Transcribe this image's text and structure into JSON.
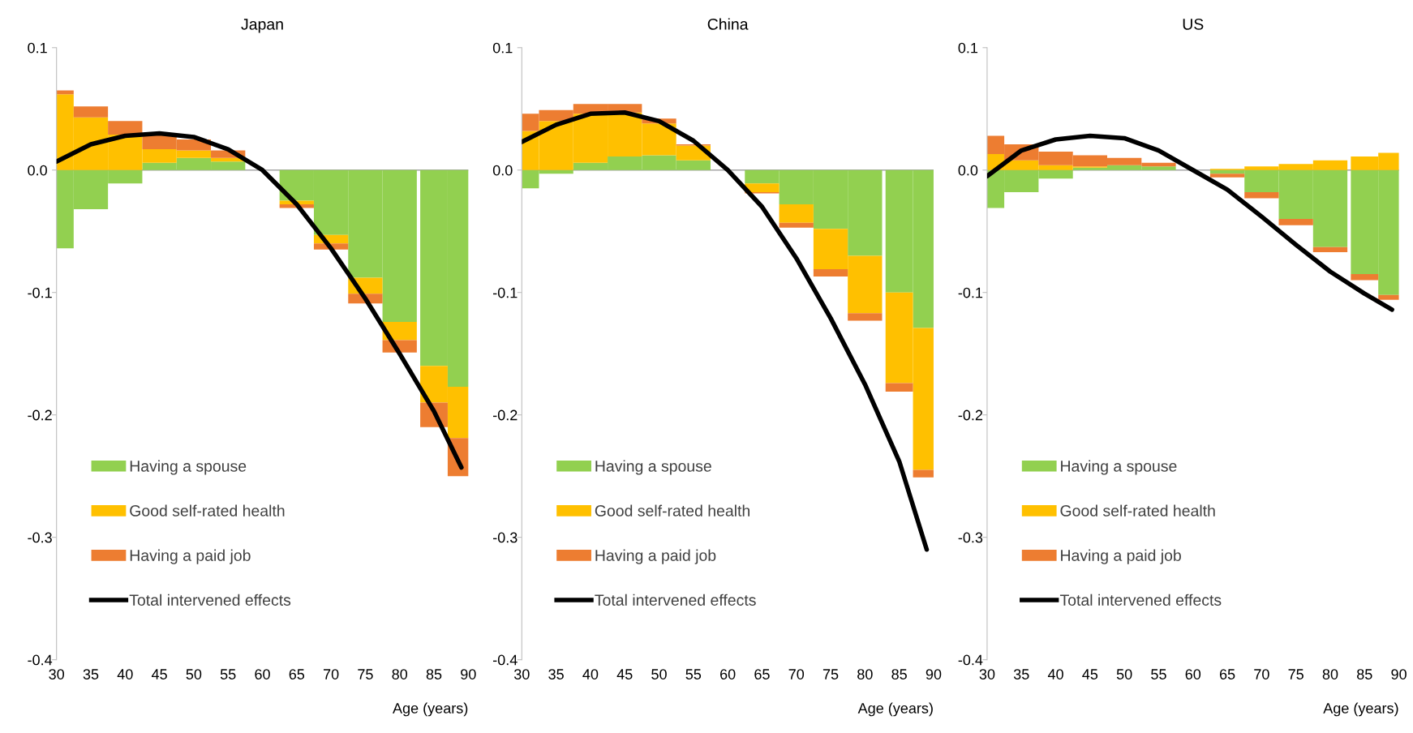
{
  "chart_data": [
    {
      "type": "bar",
      "title": "Japan",
      "xlabel": "Age (years)",
      "stacked": true,
      "x": [
        30,
        35,
        40,
        45,
        50,
        55,
        60,
        65,
        70,
        75,
        80,
        85,
        89
      ],
      "series": [
        {
          "name": "Having a spouse",
          "color": "#92d050",
          "values": [
            -0.064,
            -0.032,
            -0.011,
            0.006,
            0.01,
            0.007,
            0,
            -0.025,
            -0.053,
            -0.088,
            -0.124,
            -0.16,
            -0.177
          ]
        },
        {
          "name": "Good self-rated health",
          "color": "#ffc000",
          "values": [
            0.062,
            0.043,
            0.029,
            0.011,
            0.006,
            0.003,
            0,
            -0.003,
            -0.007,
            -0.013,
            -0.015,
            -0.03,
            -0.042
          ]
        },
        {
          "name": "Having a paid job",
          "color": "#ed7d31",
          "values": [
            0.003,
            0.009,
            0.011,
            0.012,
            0.009,
            0.006,
            0,
            -0.003,
            -0.005,
            -0.008,
            -0.01,
            -0.02,
            -0.031
          ]
        },
        {
          "name": "Total intervened effects",
          "type": "line",
          "color": "#000000",
          "values": [
            0.007,
            0.021,
            0.028,
            0.03,
            0.027,
            0.017,
            0.0,
            -0.028,
            -0.064,
            -0.105,
            -0.15,
            -0.197,
            -0.243
          ]
        }
      ],
      "xlim": [
        30,
        90
      ],
      "xticks": [
        30,
        35,
        40,
        45,
        50,
        55,
        60,
        65,
        70,
        75,
        80,
        85,
        90
      ],
      "ylim": [
        -0.4,
        0.1
      ],
      "yticks": [
        {
          "value": -0.4,
          "label": "-0.4"
        },
        {
          "value": -0.3,
          "label": "-0.3"
        },
        {
          "value": -0.2,
          "label": "-0.2"
        },
        {
          "value": -0.1,
          "label": "-0.1"
        },
        {
          "value": 0,
          "label": "0.0"
        },
        {
          "value": 0.1,
          "label": "0.1"
        }
      ],
      "ref_lines": [
        {
          "axis": "y",
          "value": 0,
          "color": "#a6a6a6"
        }
      ],
      "legend": "bottom left",
      "grid": false
    },
    {
      "type": "bar",
      "title": "China",
      "xlabel": "Age (years)",
      "stacked": true,
      "x": [
        30,
        35,
        40,
        45,
        50,
        55,
        60,
        65,
        70,
        75,
        80,
        85,
        89
      ],
      "series": [
        {
          "name": "Having a spouse",
          "color": "#92d050",
          "values": [
            -0.015,
            -0.003,
            0.006,
            0.011,
            0.012,
            0.008,
            0,
            -0.011,
            -0.028,
            -0.048,
            -0.07,
            -0.1,
            -0.129
          ]
        },
        {
          "name": "Good self-rated health",
          "color": "#ffc000",
          "values": [
            0.032,
            0.04,
            0.04,
            0.036,
            0.026,
            0.012,
            0,
            -0.007,
            -0.015,
            -0.033,
            -0.047,
            -0.074,
            -0.116
          ]
        },
        {
          "name": "Having a paid job",
          "color": "#ed7d31",
          "values": [
            0.014,
            0.009,
            0.008,
            0.007,
            0.004,
            0.001,
            0,
            -0.001,
            -0.004,
            -0.006,
            -0.006,
            -0.007,
            -0.006
          ]
        },
        {
          "name": "Total intervened effects",
          "type": "line",
          "color": "#000000",
          "values": [
            0.023,
            0.037,
            0.046,
            0.047,
            0.04,
            0.024,
            0.0,
            -0.03,
            -0.072,
            -0.121,
            -0.175,
            -0.238,
            -0.31
          ]
        }
      ],
      "xlim": [
        30,
        90
      ],
      "xticks": [
        30,
        35,
        40,
        45,
        50,
        55,
        60,
        65,
        70,
        75,
        80,
        85,
        90
      ],
      "ylim": [
        -0.4,
        0.1
      ],
      "yticks": [
        {
          "value": -0.4,
          "label": "-0.4"
        },
        {
          "value": -0.3,
          "label": "-0.3"
        },
        {
          "value": -0.2,
          "label": "-0.2"
        },
        {
          "value": -0.1,
          "label": "-0.1"
        },
        {
          "value": 0,
          "label": "0.0"
        },
        {
          "value": 0.1,
          "label": "0.1"
        }
      ],
      "ref_lines": [
        {
          "axis": "y",
          "value": 0,
          "color": "#a6a6a6"
        }
      ],
      "legend": "bottom left",
      "grid": false
    },
    {
      "type": "bar",
      "title": "US",
      "xlabel": "Age (years)",
      "stacked": true,
      "x": [
        30,
        35,
        40,
        45,
        50,
        55,
        60,
        65,
        70,
        75,
        80,
        85,
        89
      ],
      "series": [
        {
          "name": "Having a spouse",
          "color": "#92d050",
          "values": [
            -0.031,
            -0.018,
            -0.007,
            0.002,
            0.004,
            0.003,
            0,
            -0.003,
            -0.018,
            -0.04,
            -0.063,
            -0.085,
            -0.102
          ]
        },
        {
          "name": "Good self-rated health",
          "color": "#ffc000",
          "values": [
            0.013,
            0.008,
            0.004,
            0.001,
            0.0,
            0.0,
            0,
            0.001,
            0.003,
            0.005,
            0.008,
            0.011,
            0.014
          ]
        },
        {
          "name": "Having a paid job",
          "color": "#ed7d31",
          "values": [
            0.015,
            0.013,
            0.011,
            0.009,
            0.006,
            0.003,
            0,
            -0.003,
            -0.005,
            -0.005,
            -0.004,
            -0.005,
            -0.004
          ]
        },
        {
          "name": "Total intervened effects",
          "type": "line",
          "color": "#000000",
          "values": [
            -0.005,
            0.016,
            0.025,
            0.028,
            0.026,
            0.016,
            0.0,
            -0.016,
            -0.038,
            -0.061,
            -0.083,
            -0.101,
            -0.114
          ]
        }
      ],
      "xlim": [
        30,
        90
      ],
      "xticks": [
        30,
        35,
        40,
        45,
        50,
        55,
        60,
        65,
        70,
        75,
        80,
        85,
        90
      ],
      "ylim": [
        -0.4,
        0.1
      ],
      "yticks": [
        {
          "value": -0.4,
          "label": "-0.4"
        },
        {
          "value": -0.3,
          "label": "-0.3"
        },
        {
          "value": -0.2,
          "label": "-0.2"
        },
        {
          "value": -0.1,
          "label": "-0.1"
        },
        {
          "value": 0,
          "label": "0.0"
        },
        {
          "value": 0.1,
          "label": "0.1"
        }
      ],
      "ref_lines": [
        {
          "axis": "y",
          "value": 0,
          "color": "#a6a6a6"
        }
      ],
      "legend": "bottom left",
      "grid": false
    }
  ]
}
